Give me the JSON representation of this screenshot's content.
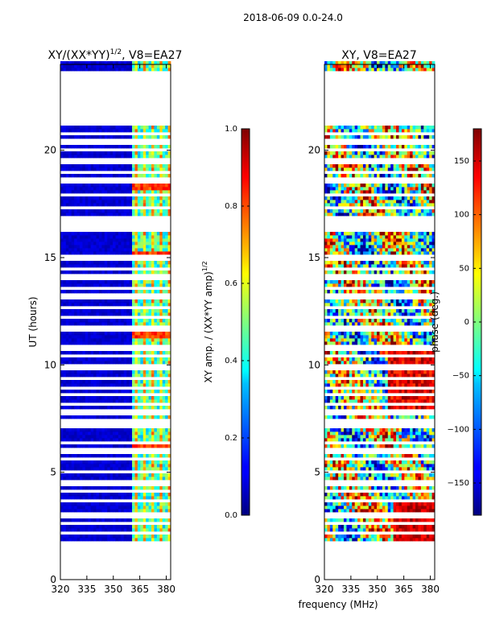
{
  "suptitle": "2018-06-09 0.0-24.0",
  "chart_data": [
    {
      "type": "heatmap",
      "title": "XY/(XX*YY)",
      "title_superscript": "1/2",
      "title_suffix": ", V8=EA27",
      "xlabel": "",
      "ylabel": "UT (hours)",
      "xlim": [
        320,
        382.5
      ],
      "ylim": [
        0,
        24
      ],
      "xticks": [
        "320",
        "335",
        "350",
        "365",
        "380"
      ],
      "yticks": [
        "0",
        "5",
        "10",
        "15",
        "20"
      ],
      "data_coverage_hours": [
        1.8,
        21.2
      ],
      "missing_data_hours": [
        [
          16.2,
          16.6
        ],
        [
          21.2,
          23.7
        ]
      ],
      "colorbar": {
        "label": "XY amp. / (XX*YY amp)",
        "label_superscript": "1/2",
        "min": 0.0,
        "max": 1.0,
        "ticks": [
          "0.0",
          "0.2",
          "0.4",
          "0.6",
          "0.8",
          "1.0"
        ]
      }
    },
    {
      "type": "heatmap",
      "title": "XY, V8=EA27",
      "xlabel": "frequency (MHz)",
      "ylabel": "",
      "xlim": [
        320,
        382.5
      ],
      "ylim": [
        0,
        24
      ],
      "xticks": [
        "320",
        "335",
        "350",
        "365",
        "380"
      ],
      "yticks": [
        "0",
        "5",
        "10",
        "15",
        "20"
      ],
      "data_coverage_hours": [
        1.8,
        21.2
      ],
      "missing_data_hours": [
        [
          16.2,
          16.6
        ],
        [
          21.2,
          23.7
        ]
      ],
      "colorbar": {
        "label": "phase (deg.)",
        "min": -180,
        "max": 180,
        "ticks": [
          "−150",
          "−100",
          "−50",
          "0",
          "50",
          "100",
          "150"
        ]
      }
    }
  ]
}
